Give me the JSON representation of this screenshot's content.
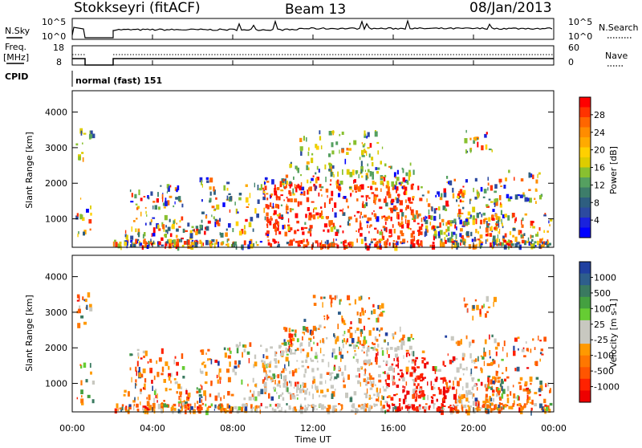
{
  "header": {
    "station": "Stokkseyri (fitACF)",
    "beam": "Beam 13",
    "date": "08/Jan/2013"
  },
  "panels": {
    "nsky": {
      "left_label": "N.Sky",
      "left_ticks": [
        "10^5",
        "10^0"
      ],
      "right_label": "N.Search",
      "right_ticks": [
        "10^5",
        "10^0"
      ]
    },
    "freq": {
      "left_label_1": "Freq.",
      "left_label_2": "[MHz]",
      "left_ticks": [
        "18",
        "8"
      ],
      "right_label": "Nave",
      "right_ticks": [
        "60",
        "0"
      ]
    },
    "cpid": {
      "label": "CPID",
      "value": "normal (fast) 151"
    }
  },
  "chart_data": [
    {
      "type": "heatmap",
      "title": "",
      "xlabel": "Time UT",
      "ylabel": "Slant Range [km]",
      "x_ticks": [
        "00:00",
        "04:00",
        "08:00",
        "12:00",
        "16:00",
        "20:00",
        "00:00"
      ],
      "y_ticks": [
        1000,
        2000,
        3000,
        4000
      ],
      "ylim": [
        200,
        4600
      ],
      "colorbar": {
        "label": "Power [dB]",
        "ticks": [
          "28",
          "24",
          "20",
          "16",
          "12",
          "8",
          "4"
        ],
        "colors": [
          "#ff0000",
          "#ff3300",
          "#ff6600",
          "#ff8c00",
          "#ffaa00",
          "#ffd000",
          "#ddcc00",
          "#88c030",
          "#55a060",
          "#3d7d6a",
          "#2e5e80",
          "#2c4aa0",
          "#1a22dd",
          "#0000ff"
        ]
      }
    },
    {
      "type": "heatmap",
      "title": "",
      "xlabel": "Time UT",
      "ylabel": "Slant Range [km]",
      "x_ticks": [
        "00:00",
        "04:00",
        "08:00",
        "12:00",
        "16:00",
        "20:00",
        "00:00"
      ],
      "y_ticks": [
        1000,
        2000,
        3000,
        4000
      ],
      "ylim": [
        200,
        4600
      ],
      "colorbar": {
        "label": "Velocity [m s-1]",
        "ticks": [
          "1000",
          "500",
          "100",
          "25",
          "-25",
          "-100",
          "-500",
          "-1000"
        ],
        "colors": [
          "#2040a0",
          "#2e5e8c",
          "#3a7a60",
          "#44a040",
          "#66cc33",
          "#c8c8c0",
          "#c8c8c0",
          "#ff9900",
          "#ff7700",
          "#ff5500",
          "#ff2200",
          "#ee0000"
        ]
      }
    }
  ],
  "colors": {
    "power_red": "#ff2000",
    "power_green": "#55a060",
    "power_blue": "#2c4aa0",
    "velocity_gray": "#c8c8c0",
    "velocity_orange": "#ff8000"
  }
}
